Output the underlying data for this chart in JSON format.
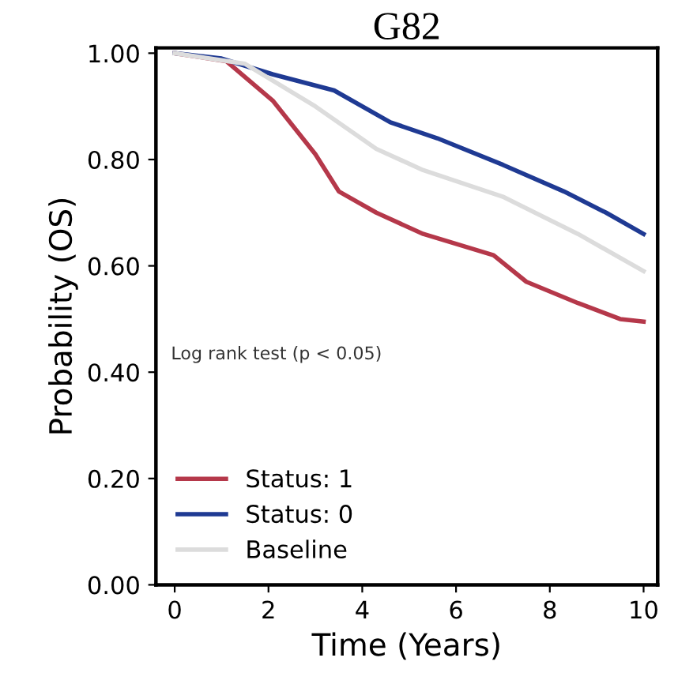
{
  "chart_data": {
    "type": "line",
    "title": "G82",
    "xlabel": "Time (Years)",
    "ylabel": "Probability (OS)",
    "xlim": [
      -0.4,
      10.3
    ],
    "xticks": [
      0,
      2,
      4,
      6,
      8,
      10
    ],
    "ylim": [
      0,
      1.01
    ],
    "yticks": [
      {
        "value": 0,
        "label": "0.00"
      },
      {
        "value": 0.2,
        "label": "0.20"
      },
      {
        "value": 0.4,
        "label": "0.40"
      },
      {
        "value": 0.6,
        "label": "0.60"
      },
      {
        "value": 0.8,
        "label": "0.80"
      },
      {
        "value": 1,
        "label": "1.00"
      }
    ],
    "grid": false,
    "legend": "bottom left",
    "line_style": "solid",
    "annotations": [
      "Log rank test (p < 0.05)"
    ],
    "series": [
      {
        "name": "Status: 1",
        "color": "#b5384a",
        "x": [
          0,
          1.1,
          2.1,
          3.0,
          3.5,
          4.3,
          5.3,
          6.8,
          7.5,
          8.6,
          9.5,
          10
        ],
        "values": [
          1.0,
          0.985,
          0.91,
          0.81,
          0.74,
          0.7,
          0.66,
          0.62,
          0.57,
          0.53,
          0.5,
          0.495
        ]
      },
      {
        "name": "Status: 0",
        "color": "#1f3a93",
        "x": [
          0,
          1.0,
          2.1,
          3.4,
          4.6,
          5.6,
          7.0,
          8.3,
          9.2,
          10
        ],
        "values": [
          1.0,
          0.99,
          0.96,
          0.93,
          0.87,
          0.84,
          0.79,
          0.74,
          0.7,
          0.66
        ]
      },
      {
        "name": "Baseline",
        "color": "#dcdcdc",
        "x": [
          0,
          1.5,
          3.0,
          4.3,
          5.3,
          7.0,
          8.6,
          10
        ],
        "values": [
          1.0,
          0.98,
          0.9,
          0.82,
          0.78,
          0.73,
          0.66,
          0.59
        ]
      }
    ]
  }
}
